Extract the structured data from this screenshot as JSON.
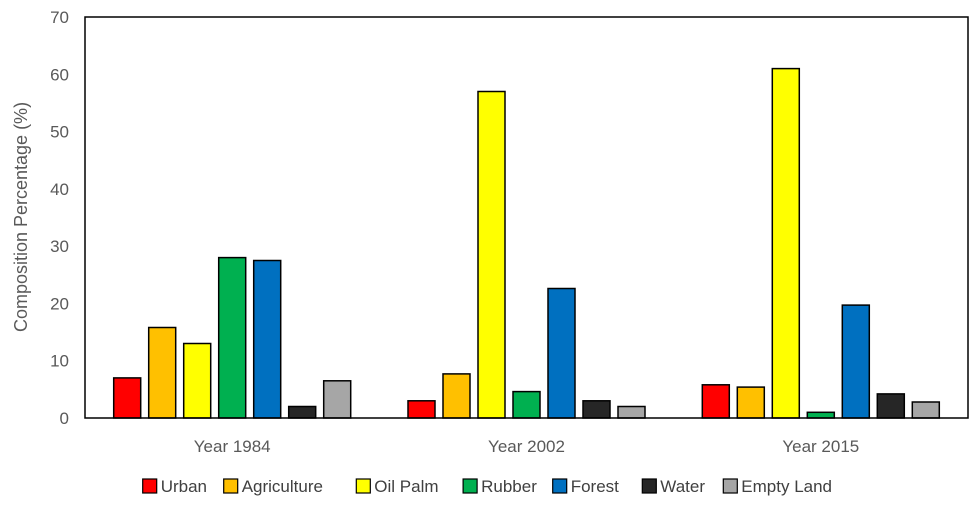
{
  "chart_data": {
    "type": "bar",
    "title": "",
    "xlabel": "",
    "ylabel": "Composition Percentage (%)",
    "ylim": [
      0,
      70
    ],
    "yticks": [
      0,
      10,
      20,
      30,
      40,
      50,
      60,
      70
    ],
    "categories": [
      "Year 1984",
      "Year 2002",
      "Year 2015"
    ],
    "grid": false,
    "legend_position": "bottom",
    "series": [
      {
        "name": "Urban",
        "color": "#ff0000",
        "values": [
          7.0,
          3.0,
          5.8
        ]
      },
      {
        "name": "Agriculture",
        "color": "#ffc000",
        "values": [
          15.8,
          7.7,
          5.4
        ]
      },
      {
        "name": "Oil Palm",
        "color": "#ffff00",
        "values": [
          13.0,
          57.0,
          61.0
        ]
      },
      {
        "name": "Rubber",
        "color": "#00b050",
        "values": [
          28.0,
          4.6,
          1.0
        ]
      },
      {
        "name": "Forest",
        "color": "#0070c0",
        "values": [
          27.5,
          22.6,
          19.7
        ]
      },
      {
        "name": "Water",
        "color": "#262626",
        "values": [
          2.0,
          3.0,
          4.2
        ]
      },
      {
        "name": "Empty Land",
        "color": "#a6a6a6",
        "values": [
          6.5,
          2.0,
          2.8
        ]
      }
    ]
  }
}
